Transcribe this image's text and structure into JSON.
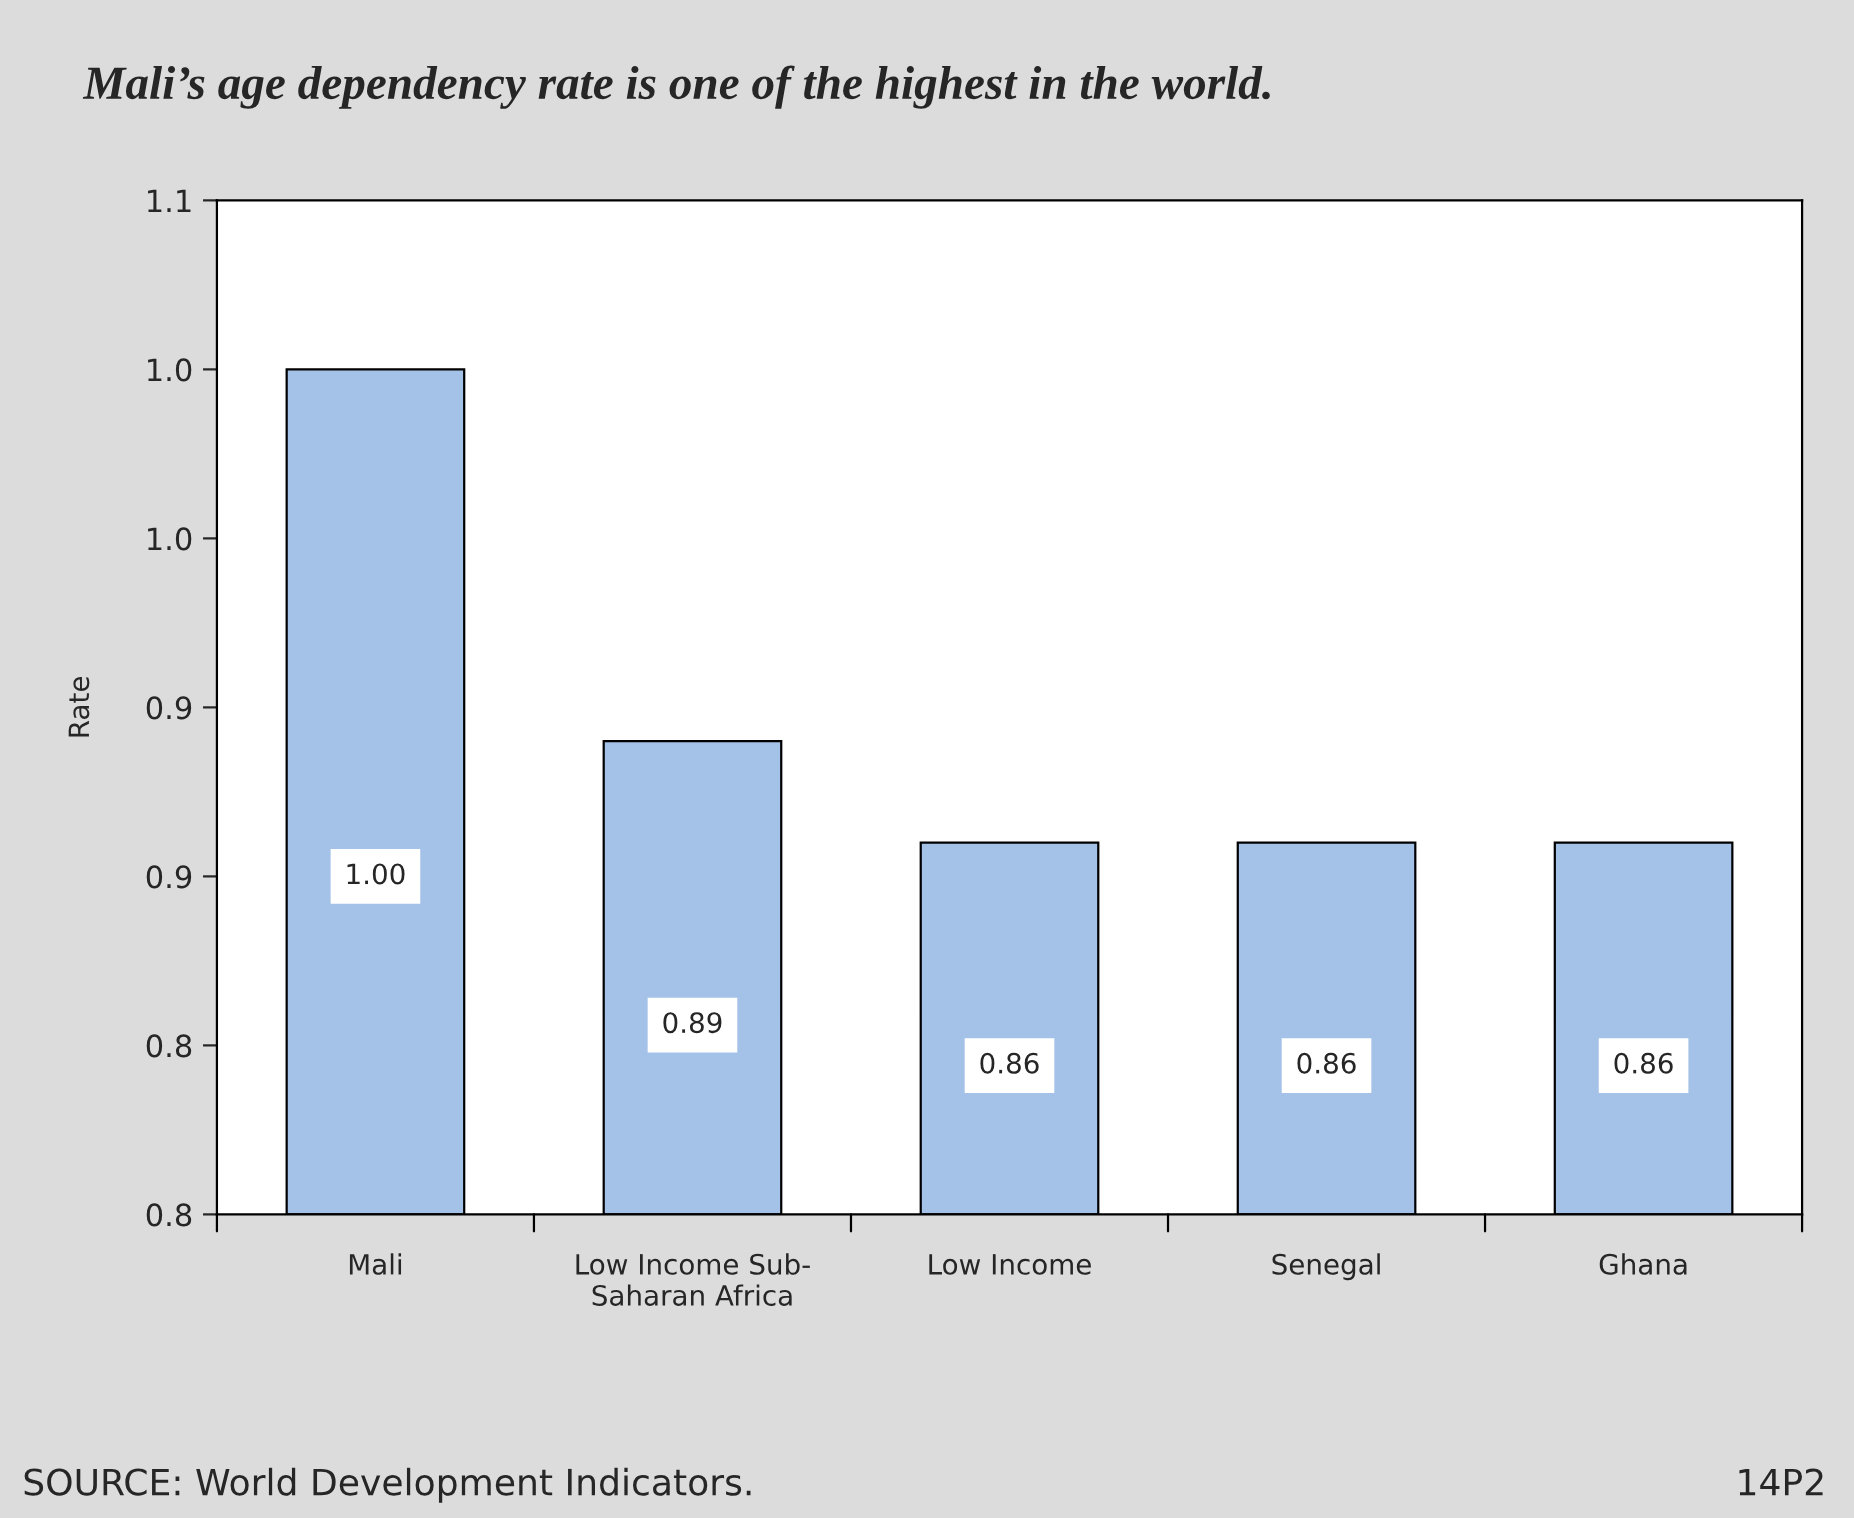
{
  "chart_data": {
    "type": "bar",
    "title": "Mali’s age dependency rate is one of the highest in the world.",
    "ylabel": "Rate",
    "categories": [
      "Mali",
      "Low Income Sub-Saharan Africa",
      "Low Income",
      "Senegal",
      "Ghana"
    ],
    "values": [
      1.0,
      0.89,
      0.86,
      0.86,
      0.86
    ],
    "color": "#a4c2e8",
    "value_labels": [
      "1.00",
      "0.89",
      "0.86",
      "0.86",
      "0.86"
    ],
    "ylim": [
      0.75,
      1.05
    ],
    "yticks": [
      {
        "value": 0.75,
        "label": "0.8"
      },
      {
        "value": 0.8,
        "label": "0.8"
      },
      {
        "value": 0.85,
        "label": "0.9"
      },
      {
        "value": 0.9,
        "label": "0.9"
      },
      {
        "value": 0.95,
        "label": "1.0"
      },
      {
        "value": 1.0,
        "label": "1.0"
      },
      {
        "value": 1.05,
        "label": "1.1"
      }
    ],
    "annotations": [
      "SOURCE: World Development Indicators.",
      "14P2"
    ]
  }
}
